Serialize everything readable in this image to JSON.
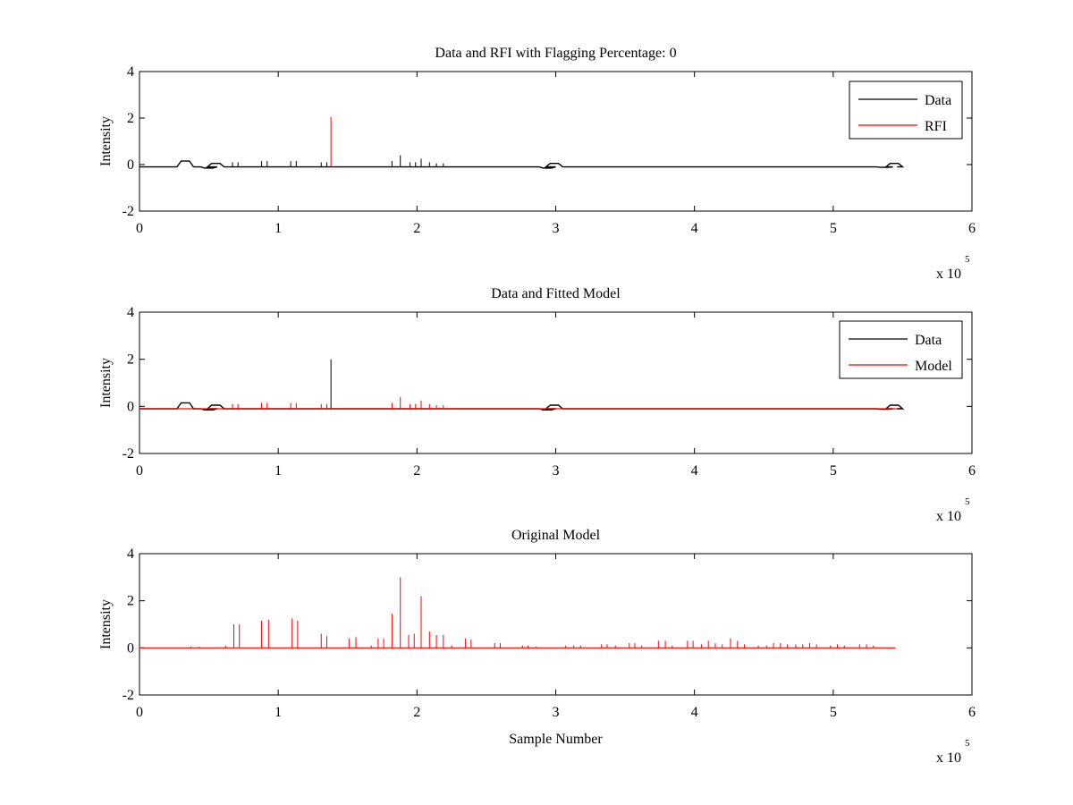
{
  "figure": {
    "background": "#ffffff"
  },
  "chart_data": [
    {
      "type": "line",
      "title": "Data and RFI with Flagging Percentage: 0",
      "xlabel": "",
      "ylabel": "Intensity",
      "xlim": [
        0,
        600000
      ],
      "ylim": [
        -2,
        4
      ],
      "x_ticks": [
        0,
        1,
        2,
        3,
        4,
        5,
        6
      ],
      "y_ticks": [
        -2,
        0,
        2,
        4
      ],
      "x_exponent": "x 10",
      "x_exponent_power": "5",
      "grid": false,
      "legend": {
        "position": "top-right",
        "entries": [
          "Data",
          "RFI"
        ]
      },
      "series": [
        {
          "name": "Data",
          "color": "#000000",
          "baseline": -0.1,
          "dips": [
            [
              33000,
              0.15
            ],
            [
              50000,
              -0.15
            ],
            [
              55000,
              0.05
            ],
            [
              294000,
              -0.15
            ],
            [
              299000,
              0.05
            ],
            [
              537000,
              -0.12
            ],
            [
              544000,
              0.05
            ]
          ],
          "spikes": [
            [
              67000,
              0.1
            ],
            [
              71000,
              0.1
            ],
            [
              88000,
              0.15
            ],
            [
              92000,
              0.15
            ],
            [
              109000,
              0.15
            ],
            [
              113000,
              0.15
            ],
            [
              131000,
              0.1
            ],
            [
              135000,
              0.1
            ],
            [
              182000,
              0.15
            ],
            [
              188000,
              0.4
            ],
            [
              195000,
              0.1
            ],
            [
              199000,
              0.1
            ],
            [
              203000,
              0.25
            ],
            [
              209000,
              0.1
            ],
            [
              214000,
              0.05
            ],
            [
              219000,
              0.05
            ]
          ]
        },
        {
          "name": "RFI",
          "color": "#ff0000",
          "spikes": [
            [
              138000,
              2.05
            ]
          ]
        }
      ]
    },
    {
      "type": "line",
      "title": "Data and Fitted Model",
      "xlabel": "",
      "ylabel": "Intensity",
      "xlim": [
        0,
        600000
      ],
      "ylim": [
        -2,
        4
      ],
      "x_ticks": [
        0,
        1,
        2,
        3,
        4,
        5,
        6
      ],
      "y_ticks": [
        -2,
        0,
        2,
        4
      ],
      "x_exponent": "x 10",
      "x_exponent_power": "5",
      "grid": false,
      "legend": {
        "position": "top-right",
        "entries": [
          "Data",
          "Model"
        ]
      },
      "series": [
        {
          "name": "Data",
          "color": "#000000",
          "baseline": -0.1,
          "dips": [
            [
              33000,
              0.15
            ],
            [
              50000,
              -0.15
            ],
            [
              55000,
              0.05
            ],
            [
              294000,
              -0.15
            ],
            [
              299000,
              0.05
            ],
            [
              537000,
              -0.12
            ],
            [
              544000,
              0.05
            ]
          ],
          "spikes": [
            [
              138000,
              2.0
            ]
          ]
        },
        {
          "name": "Model",
          "color": "#ff0000",
          "baseline": -0.1,
          "spikes": [
            [
              67000,
              0.1
            ],
            [
              71000,
              0.1
            ],
            [
              88000,
              0.15
            ],
            [
              92000,
              0.15
            ],
            [
              109000,
              0.15
            ],
            [
              113000,
              0.15
            ],
            [
              131000,
              0.1
            ],
            [
              135000,
              0.1
            ],
            [
              182000,
              0.15
            ],
            [
              188000,
              0.4
            ],
            [
              195000,
              0.1
            ],
            [
              199000,
              0.1
            ],
            [
              203000,
              0.25
            ],
            [
              209000,
              0.1
            ],
            [
              214000,
              0.05
            ],
            [
              219000,
              0.05
            ]
          ]
        }
      ]
    },
    {
      "type": "line",
      "title": "Original Model",
      "xlabel": "Sample Number",
      "ylabel": "Intensity",
      "xlim": [
        0,
        600000
      ],
      "ylim": [
        -2,
        4
      ],
      "x_ticks": [
        0,
        1,
        2,
        3,
        4,
        5,
        6
      ],
      "y_ticks": [
        -2,
        0,
        2,
        4
      ],
      "x_exponent": "x 10",
      "x_exponent_power": "5",
      "grid": false,
      "series": [
        {
          "color": "#ff0000",
          "baseline": 0.0,
          "x_end": 545000,
          "spikes": [
            [
              37000,
              0.05
            ],
            [
              43000,
              0.05
            ],
            [
              62000,
              0.1
            ],
            [
              68000,
              1.0
            ],
            [
              72000,
              1.0
            ],
            [
              88000,
              1.15
            ],
            [
              93000,
              1.2
            ],
            [
              110000,
              1.25
            ],
            [
              114000,
              1.15
            ],
            [
              131000,
              0.6
            ],
            [
              135000,
              0.5
            ],
            [
              151000,
              0.4
            ],
            [
              156000,
              0.45
            ],
            [
              167000,
              0.1
            ],
            [
              172000,
              0.4
            ],
            [
              176000,
              0.4
            ],
            [
              182000,
              1.45
            ],
            [
              188000,
              3.0
            ],
            [
              194000,
              0.55
            ],
            [
              198000,
              0.6
            ],
            [
              203000,
              2.2
            ],
            [
              209000,
              0.7
            ],
            [
              214000,
              0.55
            ],
            [
              219000,
              0.55
            ],
            [
              225000,
              0.1
            ],
            [
              235000,
              0.4
            ],
            [
              239000,
              0.35
            ],
            [
              256000,
              0.2
            ],
            [
              260000,
              0.2
            ],
            [
              276000,
              0.1
            ],
            [
              280000,
              0.1
            ],
            [
              286000,
              0.05
            ],
            [
              307000,
              0.1
            ],
            [
              313000,
              0.1
            ],
            [
              318000,
              0.1
            ],
            [
              333000,
              0.15
            ],
            [
              337000,
              0.15
            ],
            [
              343000,
              0.1
            ],
            [
              353000,
              0.2
            ],
            [
              357000,
              0.2
            ],
            [
              362000,
              0.1
            ],
            [
              374000,
              0.3
            ],
            [
              379000,
              0.3
            ],
            [
              384000,
              0.1
            ],
            [
              395000,
              0.3
            ],
            [
              399000,
              0.3
            ],
            [
              405000,
              0.15
            ],
            [
              410000,
              0.3
            ],
            [
              415000,
              0.2
            ],
            [
              420000,
              0.15
            ],
            [
              426000,
              0.4
            ],
            [
              431000,
              0.3
            ],
            [
              436000,
              0.15
            ],
            [
              446000,
              0.1
            ],
            [
              452000,
              0.1
            ],
            [
              457000,
              0.2
            ],
            [
              462000,
              0.2
            ],
            [
              467000,
              0.15
            ],
            [
              473000,
              0.15
            ],
            [
              478000,
              0.15
            ],
            [
              483000,
              0.2
            ],
            [
              488000,
              0.15
            ],
            [
              498000,
              0.1
            ],
            [
              503000,
              0.15
            ],
            [
              508000,
              0.1
            ],
            [
              519000,
              0.15
            ],
            [
              524000,
              0.15
            ],
            [
              529000,
              0.1
            ]
          ]
        }
      ]
    }
  ]
}
